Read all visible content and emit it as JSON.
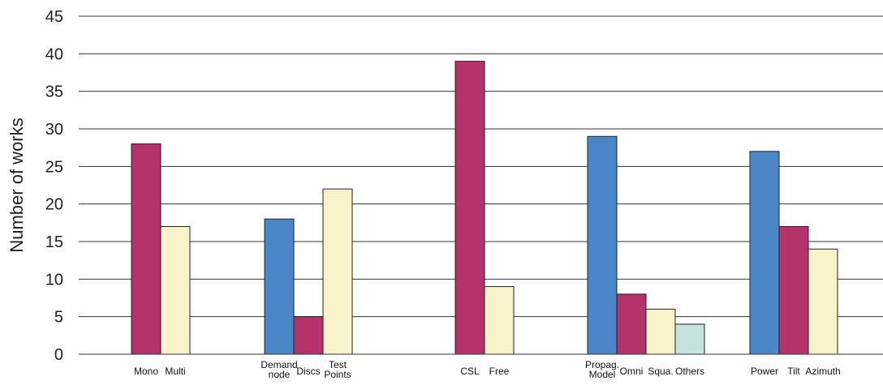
{
  "chart_data": {
    "type": "bar",
    "title": "",
    "xlabel": "",
    "ylabel": "Number of works",
    "ylim": [
      0,
      45
    ],
    "yticks": [
      0,
      5,
      10,
      15,
      20,
      25,
      30,
      35,
      40,
      45
    ],
    "grid": true,
    "legend": "none",
    "colors": {
      "blue": "#4a86c8",
      "magenta": "#b5336b",
      "cream": "#f8f3cb",
      "teal": "#c4e3df"
    },
    "groups": [
      {
        "bars": [
          {
            "label": "Mono",
            "value": 28,
            "color": "magenta"
          },
          {
            "label": "Multi",
            "value": 17,
            "color": "cream"
          }
        ]
      },
      {
        "bars": [
          {
            "label": "Demand\nnode",
            "value": 18,
            "color": "blue"
          },
          {
            "label": "Discs",
            "value": 5,
            "color": "magenta"
          },
          {
            "label": "Test\nPoints",
            "value": 22,
            "color": "cream"
          }
        ]
      },
      {
        "bars": [
          {
            "label": "CSL",
            "value": 39,
            "color": "magenta"
          },
          {
            "label": "Free",
            "value": 9,
            "color": "cream"
          }
        ]
      },
      {
        "bars": [
          {
            "label": "Propag.\nModel",
            "value": 29,
            "color": "blue"
          },
          {
            "label": "Omni",
            "value": 8,
            "color": "magenta"
          },
          {
            "label": "Squa.",
            "value": 6,
            "color": "cream"
          },
          {
            "label": "Others",
            "value": 4,
            "color": "teal"
          }
        ]
      },
      {
        "bars": [
          {
            "label": "Power",
            "value": 27,
            "color": "blue"
          },
          {
            "label": "Tilt",
            "value": 17,
            "color": "magenta"
          },
          {
            "label": "Azimuth",
            "value": 14,
            "color": "cream"
          }
        ]
      }
    ]
  }
}
